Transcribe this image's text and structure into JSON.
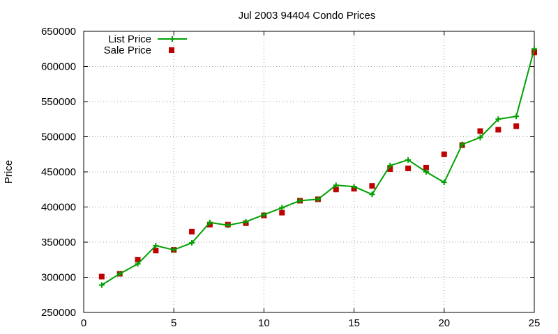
{
  "chart_data": {
    "type": "line",
    "title": "Jul 2003 94404 Condo Prices",
    "xlabel": "",
    "ylabel": "Price",
    "xlim": [
      0,
      25
    ],
    "ylim": [
      250000,
      650000
    ],
    "x_ticks": [
      0,
      5,
      10,
      15,
      20,
      25
    ],
    "y_ticks": [
      250000,
      300000,
      350000,
      400000,
      450000,
      500000,
      550000,
      600000,
      650000
    ],
    "grid": true,
    "legend_position": "top-left",
    "series": [
      {
        "name": "List Price",
        "style": "line+plus",
        "color": "#00a000",
        "x": [
          1,
          2,
          3,
          4,
          5,
          6,
          7,
          8,
          9,
          10,
          11,
          12,
          13,
          14,
          15,
          16,
          17,
          18,
          19,
          20,
          21,
          22,
          23,
          24,
          25
        ],
        "values": [
          289000,
          305000,
          319000,
          345000,
          339000,
          349000,
          378000,
          374000,
          379000,
          389000,
          399000,
          409000,
          411000,
          431000,
          429000,
          418000,
          459000,
          467000,
          450000,
          435000,
          489000,
          499000,
          525000,
          529000,
          625000
        ]
      },
      {
        "name": "Sale Price",
        "style": "square",
        "color": "#c00000",
        "x": [
          1,
          2,
          3,
          4,
          5,
          6,
          7,
          8,
          9,
          10,
          11,
          12,
          13,
          14,
          15,
          16,
          17,
          18,
          19,
          20,
          21,
          22,
          23,
          24,
          25
        ],
        "values": [
          301000,
          305000,
          325000,
          338000,
          339000,
          365000,
          375000,
          375000,
          377000,
          388000,
          392000,
          409000,
          411000,
          425000,
          426000,
          430000,
          454000,
          455000,
          456000,
          475000,
          488000,
          508000,
          510000,
          515000,
          620000
        ]
      }
    ]
  }
}
